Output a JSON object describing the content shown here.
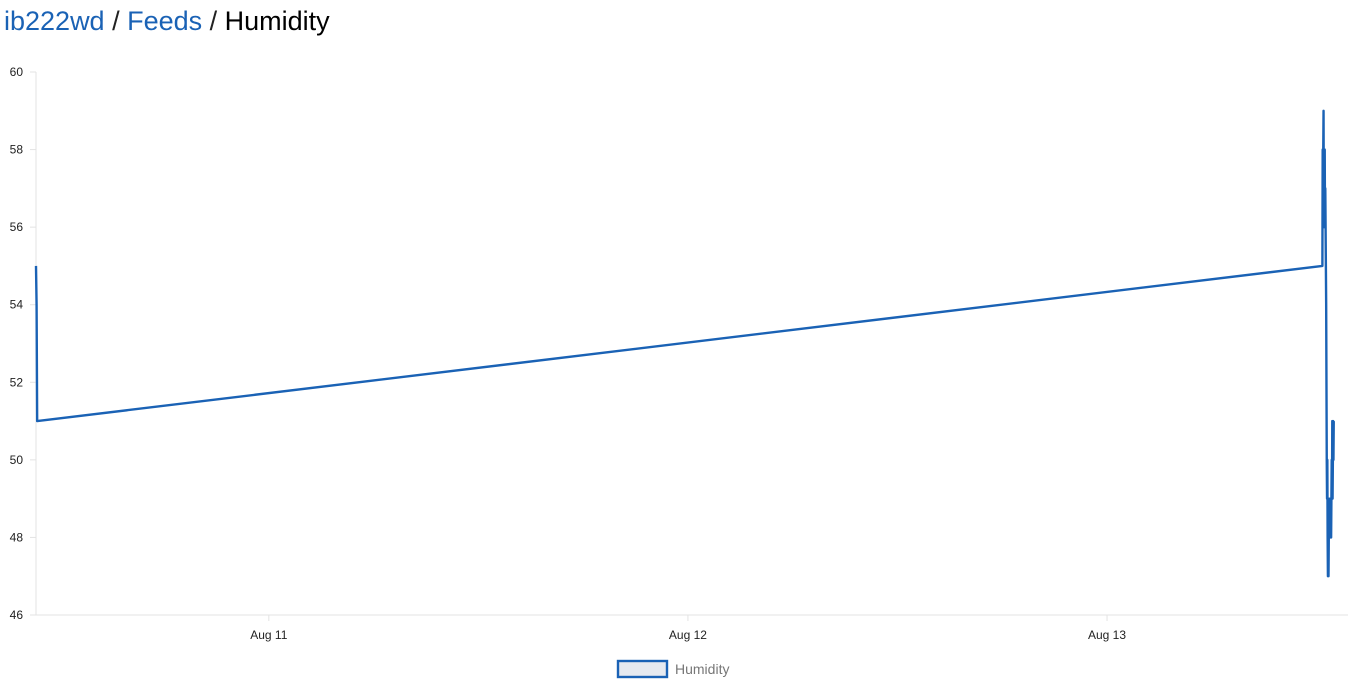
{
  "breadcrumb": {
    "user": "ib222wd",
    "sep1": " / ",
    "feeds": "Feeds",
    "sep2": " / ",
    "current": "Humidity"
  },
  "colors": {
    "series": "#1a62b5",
    "legend_fill": "#e6eaf0",
    "link": "#1a62b5",
    "axis": "#e3e3e3"
  },
  "chart_data": {
    "type": "line",
    "title": "",
    "xlabel": "",
    "ylabel": "",
    "ylim": [
      46,
      60
    ],
    "xlim": [
      "2023-08-10 10:40",
      "2023-08-13 13:48"
    ],
    "y_ticks": [
      "60",
      "58",
      "56",
      "54",
      "52",
      "50",
      "48",
      "46"
    ],
    "x_ticks": [
      {
        "label": "Aug 11",
        "value": "2023-08-11 00:00"
      },
      {
        "label": "Aug 12",
        "value": "2023-08-12 00:00"
      },
      {
        "label": "Aug 13",
        "value": "2023-08-13 00:00"
      }
    ],
    "grid": false,
    "legend": "bottom-center",
    "series": [
      {
        "name": "Humidity",
        "points": [
          [
            "2023-08-10 10:40",
            55
          ],
          [
            "2023-08-10 10:42",
            54
          ],
          [
            "2023-08-10 10:44",
            51
          ],
          [
            "2023-08-13 12:20",
            55
          ],
          [
            "2023-08-13 12:21",
            58
          ],
          [
            "2023-08-13 12:23",
            58
          ],
          [
            "2023-08-13 12:24",
            59
          ],
          [
            "2023-08-13 12:25",
            56
          ],
          [
            "2023-08-13 12:26",
            57
          ],
          [
            "2023-08-13 12:27",
            56
          ],
          [
            "2023-08-13 12:28",
            58
          ],
          [
            "2023-08-13 12:29",
            56
          ],
          [
            "2023-08-13 12:30",
            57
          ],
          [
            "2023-08-13 12:31",
            56
          ],
          [
            "2023-08-13 12:32",
            55
          ],
          [
            "2023-08-13 12:33",
            54
          ],
          [
            "2023-08-13 12:34",
            52
          ],
          [
            "2023-08-13 12:35",
            50
          ],
          [
            "2023-08-13 12:36",
            49
          ],
          [
            "2023-08-13 12:37",
            50
          ],
          [
            "2023-08-13 12:38",
            48
          ],
          [
            "2023-08-13 12:39",
            47
          ],
          [
            "2023-08-13 12:40",
            48
          ],
          [
            "2023-08-13 12:41",
            47
          ],
          [
            "2023-08-13 12:42",
            48
          ],
          [
            "2023-08-13 12:43",
            49
          ],
          [
            "2023-08-13 12:44",
            48
          ],
          [
            "2023-08-13 12:45",
            49
          ],
          [
            "2023-08-13 12:46",
            48
          ],
          [
            "2023-08-13 12:48",
            48
          ],
          [
            "2023-08-13 12:50",
            48
          ],
          [
            "2023-08-13 12:51",
            49
          ],
          [
            "2023-08-13 12:52",
            50
          ],
          [
            "2023-08-13 12:53",
            49
          ],
          [
            "2023-08-13 12:54",
            51
          ],
          [
            "2023-08-13 12:55",
            49
          ],
          [
            "2023-08-13 12:56",
            50
          ],
          [
            "2023-08-13 12:57",
            51
          ],
          [
            "2023-08-13 12:58",
            50
          ],
          [
            "2023-08-13 12:59",
            51
          ]
        ]
      }
    ]
  }
}
